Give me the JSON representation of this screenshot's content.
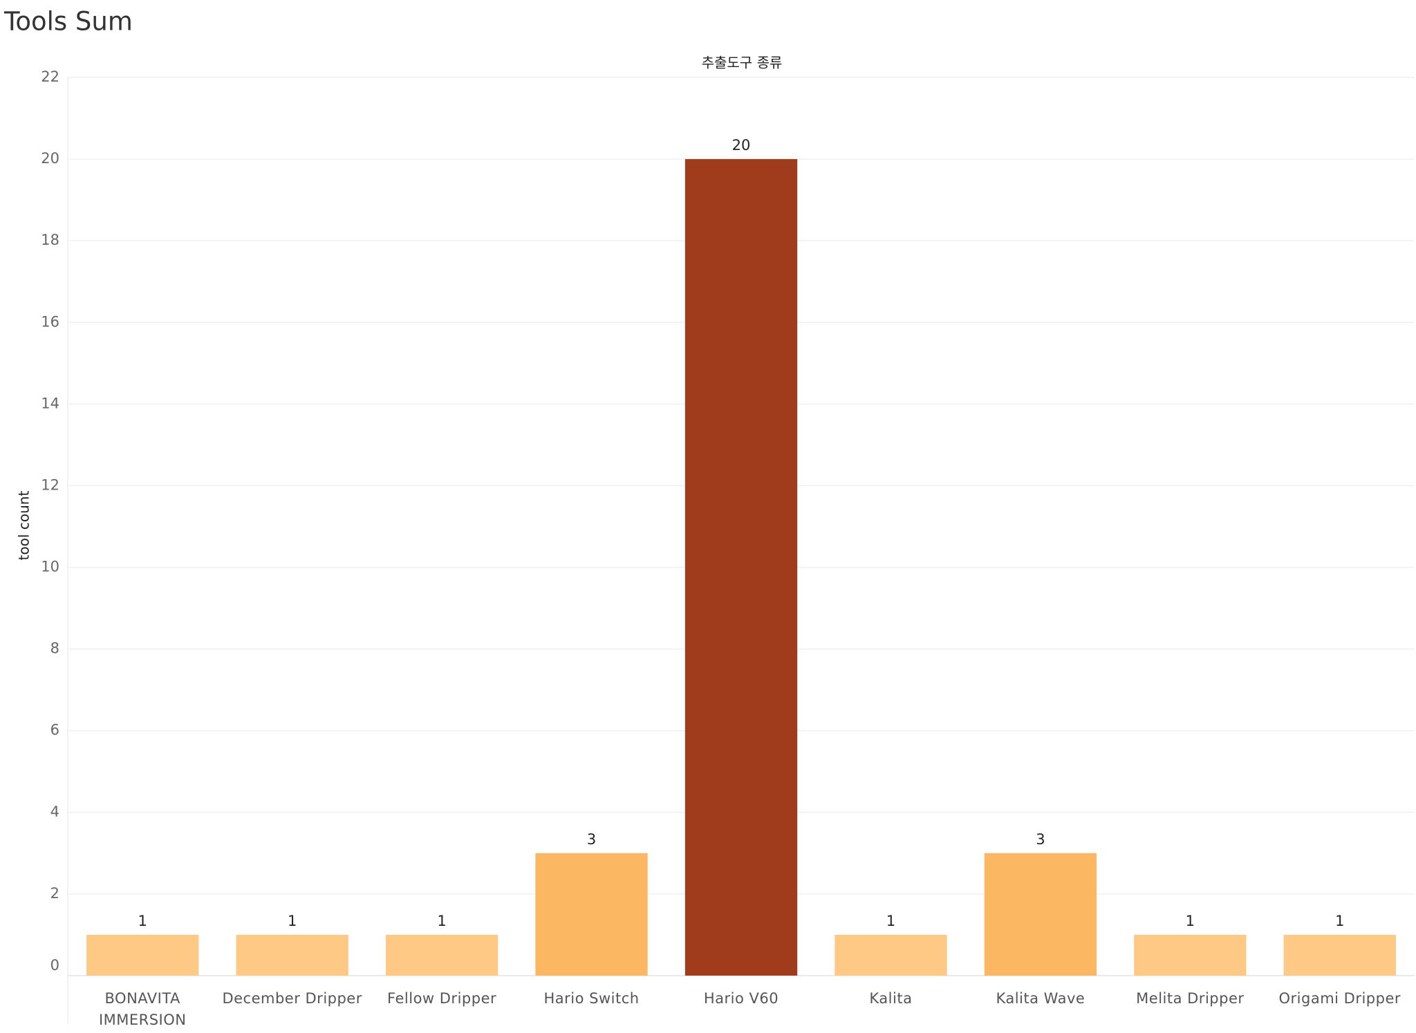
{
  "chart_data": {
    "type": "bar",
    "title": "Tools Sum",
    "column_header": "추출도구 종류",
    "y_label": "tool count",
    "categories": [
      "BONAVITA IMMERSION",
      "December Dripper",
      "Fellow Dripper",
      "Hario Switch",
      "Hario V60",
      "Kalita",
      "Kalita Wave",
      "Melita Dripper",
      "Origami Dripper"
    ],
    "values": [
      1,
      1,
      1,
      3,
      20,
      1,
      3,
      1,
      1
    ],
    "colors": [
      "#fec984",
      "#fec984",
      "#fec984",
      "#fbb762",
      "#a03c1b",
      "#fec984",
      "#fbb762",
      "#fec984",
      "#fec984"
    ],
    "ylim": [
      0,
      22
    ],
    "yticks": [
      0,
      2,
      4,
      6,
      8,
      10,
      12,
      14,
      16,
      18,
      20,
      22
    ],
    "grid": true
  }
}
